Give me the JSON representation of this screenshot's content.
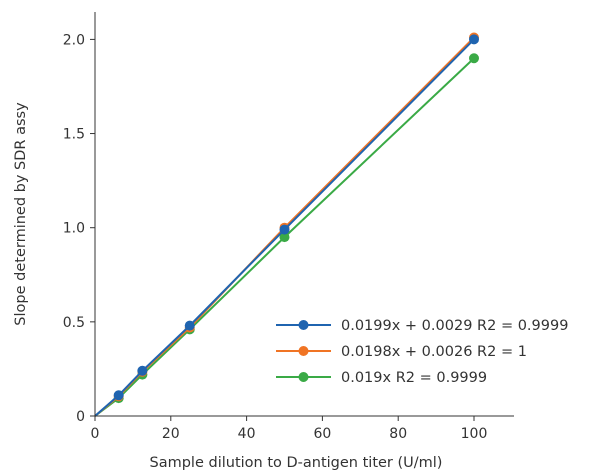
{
  "chart_data": {
    "type": "line",
    "title": "",
    "xlabel": "Sample dilution to D-antigen titer (U/ml)",
    "ylabel": "Slope determined by SDR assy",
    "xlim": [
      0,
      110
    ],
    "ylim": [
      0,
      2.15
    ],
    "x_ticks": [
      "0",
      "20",
      "40",
      "60",
      "80",
      "100"
    ],
    "y_ticks": [
      "0",
      "0.5",
      "1.0",
      "1.5",
      "2.0"
    ],
    "grid": false,
    "legend_position": "lower-right",
    "series": [
      {
        "name": "0.0199x + 0.0029 R2 = 0.9999",
        "color": "#1f64b0",
        "x": [
          6.25,
          12.5,
          25,
          50,
          100
        ],
        "y": [
          0.11,
          0.24,
          0.48,
          0.99,
          2.0
        ]
      },
      {
        "name": "0.0198x + 0.0026 R2 = 1",
        "color": "#f07424",
        "x": [
          6.25,
          12.5,
          25,
          50,
          100
        ],
        "y": [
          0.105,
          0.235,
          0.47,
          1.0,
          2.01
        ]
      },
      {
        "name": "0.019x R2 = 0.9999",
        "color": "#3aaa46",
        "x": [
          6.25,
          12.5,
          25,
          50,
          100
        ],
        "y": [
          0.095,
          0.22,
          0.46,
          0.95,
          1.9
        ]
      }
    ]
  }
}
